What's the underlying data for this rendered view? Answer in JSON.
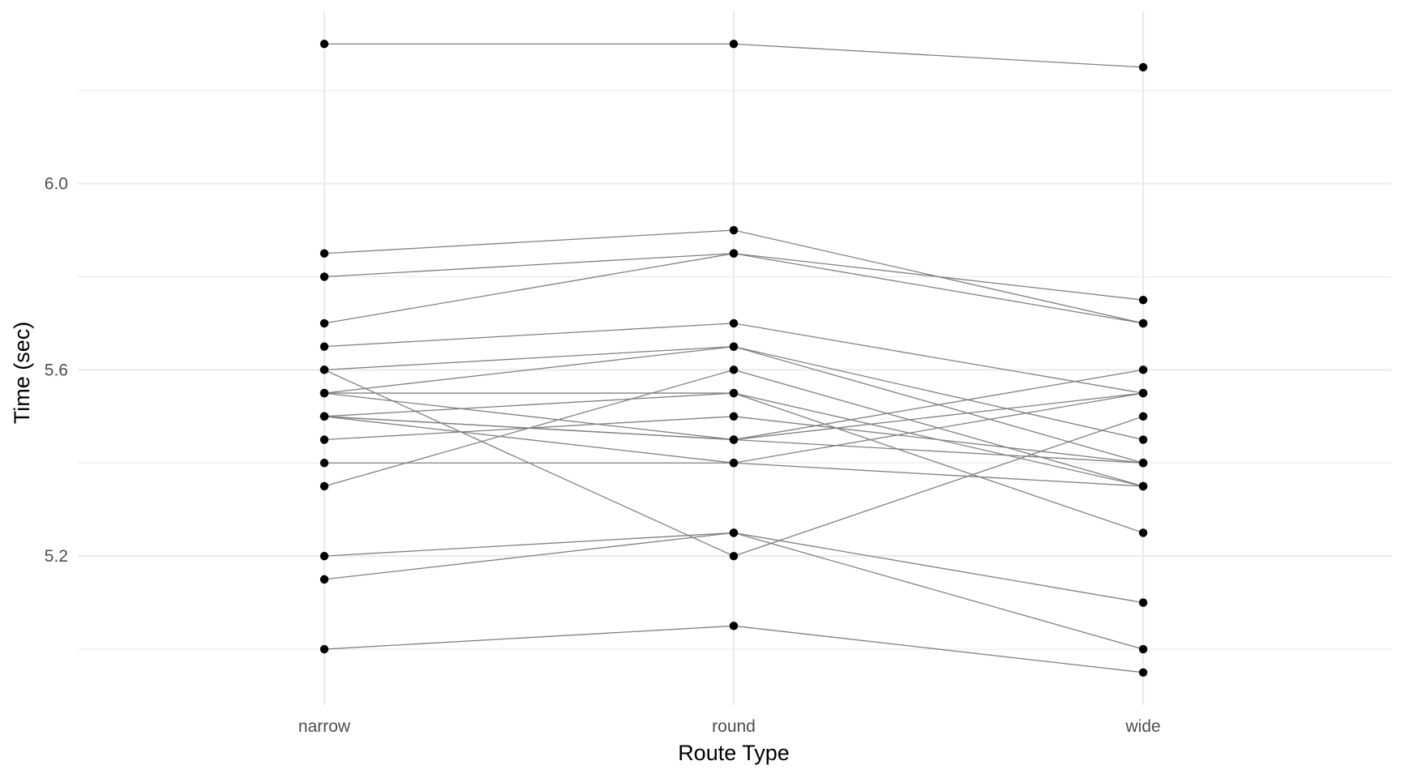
{
  "chart_data": {
    "type": "line",
    "title": "",
    "xlabel": "Route Type",
    "ylabel": "Time (sec)",
    "categories": [
      "narrow",
      "round",
      "wide"
    ],
    "y_ticks": [
      "5.2",
      "5.6",
      "6.0"
    ],
    "y_tick_values": [
      5.2,
      5.6,
      6.0
    ],
    "y_minor_values": [
      5.0,
      5.4,
      5.8,
      6.2
    ],
    "ylim": [
      4.88,
      6.37
    ],
    "grid": true,
    "legend": "none",
    "colors": {
      "line": "#808080",
      "point": "#000000",
      "grid": "#ebebeb"
    },
    "series": [
      {
        "values": [
          6.3,
          6.3,
          6.25
        ]
      },
      {
        "values": [
          5.85,
          5.9,
          5.7
        ]
      },
      {
        "values": [
          5.8,
          5.85,
          5.7
        ]
      },
      {
        "values": [
          5.7,
          5.85,
          5.75
        ]
      },
      {
        "values": [
          5.65,
          5.7,
          5.55
        ]
      },
      {
        "values": [
          5.6,
          5.65,
          5.4
        ]
      },
      {
        "values": [
          5.55,
          5.65,
          5.45
        ]
      },
      {
        "values": [
          5.6,
          5.2,
          5.5
        ]
      },
      {
        "values": [
          5.55,
          5.55,
          5.35
        ]
      },
      {
        "values": [
          5.55,
          5.45,
          5.55
        ]
      },
      {
        "values": [
          5.5,
          5.45,
          5.4
        ]
      },
      {
        "values": [
          5.5,
          5.45,
          5.6
        ]
      },
      {
        "values": [
          5.5,
          5.4,
          5.55
        ]
      },
      {
        "values": [
          5.45,
          5.5,
          5.4
        ]
      },
      {
        "values": [
          5.4,
          5.4,
          5.35
        ]
      },
      {
        "values": [
          5.35,
          5.6,
          5.35
        ]
      },
      {
        "values": [
          5.5,
          5.55,
          5.25
        ]
      },
      {
        "values": [
          5.2,
          5.25,
          5.0
        ]
      },
      {
        "values": [
          5.15,
          5.25,
          5.1
        ]
      },
      {
        "values": [
          5.0,
          5.05,
          4.95
        ]
      }
    ]
  }
}
